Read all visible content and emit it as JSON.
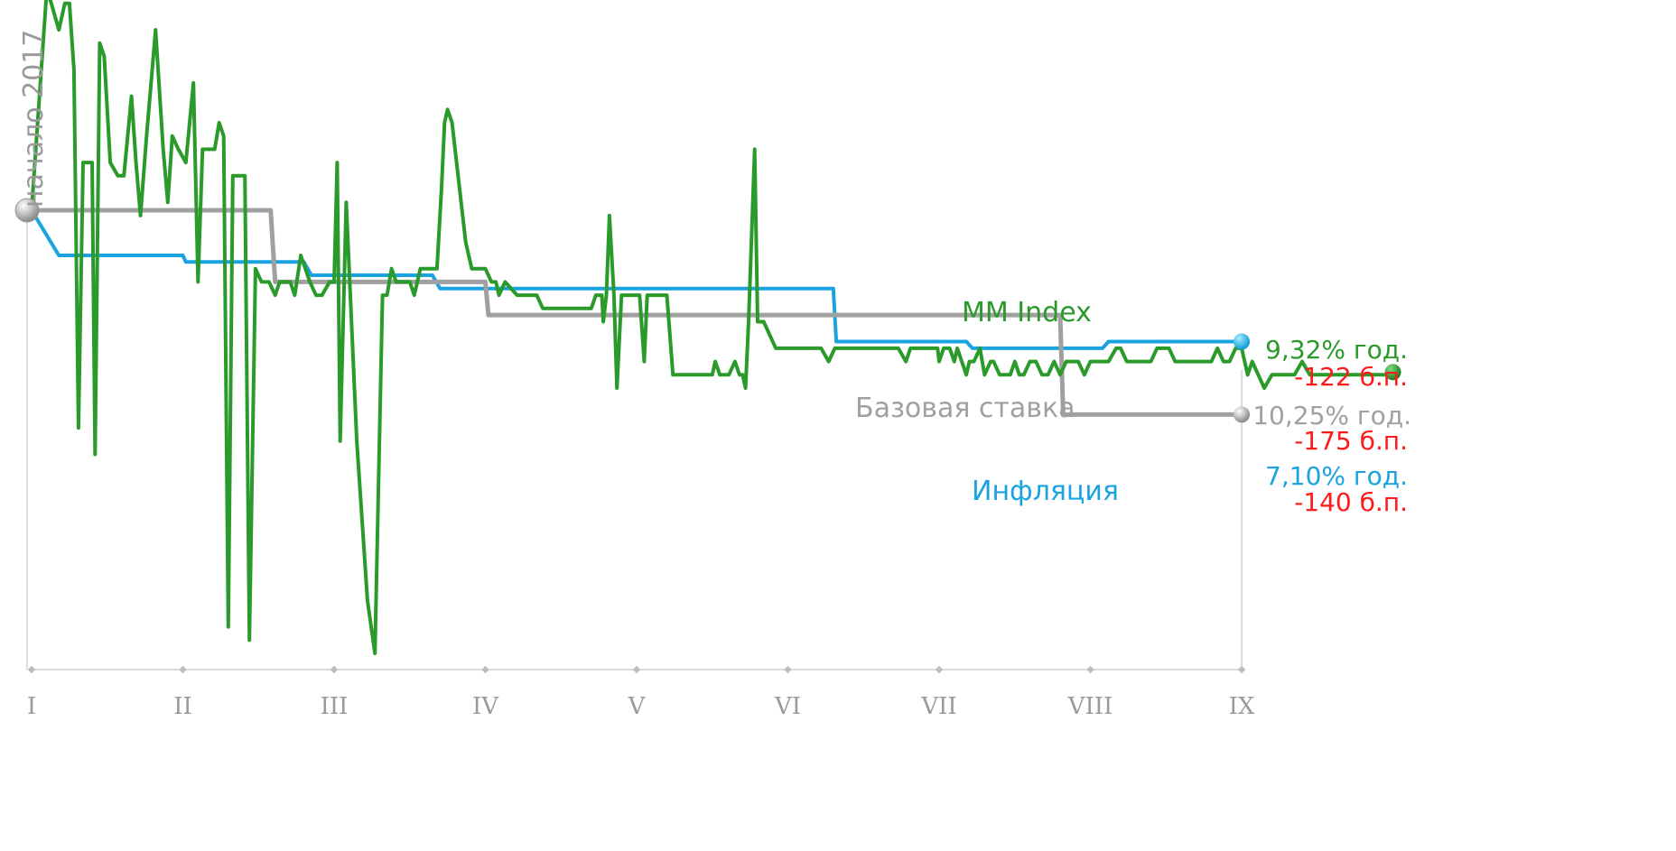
{
  "chart_data": {
    "type": "line",
    "xlabel": "",
    "ylabel": "",
    "start_label": "начало 2017",
    "x_ticks": [
      "I",
      "II",
      "III",
      "IV",
      "V",
      "VI",
      "VII",
      "VIII",
      "IX"
    ],
    "series": [
      {
        "name": "MM Index",
        "color": "#2a9a2a",
        "end_rate": "9,32% год.",
        "end_bp": "-122 б.п.",
        "points": [
          [
            0,
            10.54
          ],
          [
            0.1,
            12.2
          ],
          [
            0.13,
            12.1
          ],
          [
            0.18,
            11.9
          ],
          [
            0.22,
            12.1
          ],
          [
            0.25,
            12.1
          ],
          [
            0.28,
            11.6
          ],
          [
            0.31,
            8.9
          ],
          [
            0.34,
            10.9
          ],
          [
            0.38,
            10.9
          ],
          [
            0.4,
            10.9
          ],
          [
            0.42,
            8.7
          ],
          [
            0.45,
            11.8
          ],
          [
            0.48,
            11.7
          ],
          [
            0.52,
            10.9
          ],
          [
            0.57,
            10.8
          ],
          [
            0.61,
            10.8
          ],
          [
            0.66,
            11.4
          ],
          [
            0.69,
            10.9
          ],
          [
            0.72,
            10.5
          ],
          [
            0.76,
            11.1
          ],
          [
            0.82,
            11.9
          ],
          [
            0.87,
            11.0
          ],
          [
            0.9,
            10.6
          ],
          [
            0.93,
            11.1
          ],
          [
            0.97,
            11.0
          ],
          [
            1.02,
            10.9
          ],
          [
            1.07,
            11.5
          ],
          [
            1.1,
            10.0
          ],
          [
            1.13,
            11.0
          ],
          [
            1.17,
            11.0
          ],
          [
            1.21,
            11.0
          ],
          [
            1.24,
            11.2
          ],
          [
            1.27,
            11.1
          ],
          [
            1.3,
            7.4
          ],
          [
            1.33,
            10.8
          ],
          [
            1.36,
            10.8
          ],
          [
            1.41,
            10.8
          ],
          [
            1.44,
            7.3
          ],
          [
            1.48,
            10.1
          ],
          [
            1.52,
            10.0
          ],
          [
            1.57,
            10.0
          ],
          [
            1.61,
            9.9
          ],
          [
            1.64,
            10.0
          ],
          [
            1.68,
            10.0
          ],
          [
            1.71,
            10.0
          ],
          [
            1.74,
            9.9
          ],
          [
            1.78,
            10.2
          ],
          [
            1.84,
            10.0
          ],
          [
            1.88,
            9.9
          ],
          [
            1.92,
            9.9
          ],
          [
            1.97,
            10.0
          ],
          [
            2.0,
            10.0
          ],
          [
            2.02,
            10.9
          ],
          [
            2.04,
            8.8
          ],
          [
            2.08,
            10.6
          ],
          [
            2.15,
            8.8
          ],
          [
            2.22,
            7.6
          ],
          [
            2.27,
            7.2
          ],
          [
            2.32,
            9.9
          ],
          [
            2.35,
            9.9
          ],
          [
            2.38,
            10.1
          ],
          [
            2.41,
            10.0
          ],
          [
            2.45,
            10.0
          ],
          [
            2.5,
            10.0
          ],
          [
            2.53,
            9.9
          ],
          [
            2.57,
            10.1
          ],
          [
            2.63,
            10.1
          ],
          [
            2.68,
            10.1
          ],
          [
            2.71,
            10.7
          ],
          [
            2.73,
            11.2
          ],
          [
            2.75,
            11.3
          ],
          [
            2.78,
            11.2
          ],
          [
            2.87,
            10.3
          ],
          [
            2.91,
            10.1
          ],
          [
            2.94,
            10.1
          ],
          [
            3.0,
            10.1
          ],
          [
            3.04,
            10.0
          ],
          [
            3.07,
            10.0
          ],
          [
            3.09,
            9.9
          ],
          [
            3.13,
            10.0
          ],
          [
            3.21,
            9.9
          ],
          [
            3.26,
            9.9
          ],
          [
            3.3,
            9.9
          ],
          [
            3.34,
            9.9
          ],
          [
            3.38,
            9.8
          ],
          [
            3.41,
            9.8
          ],
          [
            3.47,
            9.8
          ],
          [
            3.5,
            9.8
          ],
          [
            3.55,
            9.8
          ],
          [
            3.59,
            9.8
          ],
          [
            3.62,
            9.8
          ],
          [
            3.65,
            9.8
          ],
          [
            3.7,
            9.8
          ],
          [
            3.73,
            9.9
          ],
          [
            3.77,
            9.9
          ],
          [
            3.78,
            9.7
          ],
          [
            3.8,
            9.9
          ],
          [
            3.82,
            10.5
          ],
          [
            3.85,
            9.9
          ],
          [
            3.87,
            9.2
          ],
          [
            3.9,
            9.9
          ],
          [
            3.92,
            9.9
          ],
          [
            3.96,
            9.9
          ],
          [
            4.02,
            9.9
          ],
          [
            4.05,
            9.4
          ],
          [
            4.07,
            9.9
          ],
          [
            4.1,
            9.9
          ],
          [
            4.16,
            9.9
          ],
          [
            4.2,
            9.9
          ],
          [
            4.24,
            9.3
          ],
          [
            4.26,
            9.3
          ],
          [
            4.3,
            9.3
          ],
          [
            4.33,
            9.3
          ],
          [
            4.37,
            9.3
          ],
          [
            4.4,
            9.3
          ],
          [
            4.45,
            9.3
          ],
          [
            4.5,
            9.3
          ],
          [
            4.52,
            9.4
          ],
          [
            4.55,
            9.3
          ],
          [
            4.58,
            9.3
          ],
          [
            4.61,
            9.3
          ],
          [
            4.65,
            9.4
          ],
          [
            4.68,
            9.3
          ],
          [
            4.7,
            9.3
          ],
          [
            4.72,
            9.2
          ],
          [
            4.74,
            9.7
          ],
          [
            4.78,
            11.0
          ],
          [
            4.8,
            9.7
          ],
          [
            4.84,
            9.7
          ],
          [
            4.88,
            9.6
          ],
          [
            4.92,
            9.5
          ],
          [
            4.97,
            9.5
          ],
          [
            5.0,
            9.5
          ],
          [
            5.06,
            9.5
          ],
          [
            5.1,
            9.5
          ],
          [
            5.17,
            9.5
          ],
          [
            5.22,
            9.5
          ],
          [
            5.27,
            9.4
          ],
          [
            5.31,
            9.5
          ],
          [
            5.36,
            9.5
          ],
          [
            5.42,
            9.5
          ],
          [
            5.48,
            9.5
          ],
          [
            5.53,
            9.5
          ],
          [
            5.57,
            9.5
          ],
          [
            5.61,
            9.5
          ],
          [
            5.65,
            9.5
          ],
          [
            5.7,
            9.5
          ],
          [
            5.73,
            9.5
          ],
          [
            5.78,
            9.4
          ],
          [
            5.81,
            9.5
          ],
          [
            5.84,
            9.5
          ],
          [
            5.88,
            9.5
          ],
          [
            5.92,
            9.5
          ],
          [
            5.95,
            9.5
          ],
          [
            5.99,
            9.5
          ],
          [
            6.0,
            9.4
          ],
          [
            6.03,
            9.5
          ],
          [
            6.07,
            9.5
          ],
          [
            6.1,
            9.4
          ],
          [
            6.12,
            9.5
          ],
          [
            6.15,
            9.4
          ],
          [
            6.18,
            9.3
          ],
          [
            6.2,
            9.4
          ],
          [
            6.23,
            9.4
          ],
          [
            6.27,
            9.5
          ],
          [
            6.3,
            9.3
          ],
          [
            6.34,
            9.4
          ],
          [
            6.36,
            9.4
          ],
          [
            6.4,
            9.3
          ],
          [
            6.43,
            9.3
          ],
          [
            6.47,
            9.3
          ],
          [
            6.5,
            9.4
          ],
          [
            6.53,
            9.3
          ],
          [
            6.56,
            9.3
          ],
          [
            6.6,
            9.4
          ],
          [
            6.64,
            9.4
          ],
          [
            6.68,
            9.3
          ],
          [
            6.72,
            9.3
          ],
          [
            6.76,
            9.4
          ],
          [
            6.8,
            9.3
          ],
          [
            6.84,
            9.4
          ],
          [
            6.88,
            9.4
          ],
          [
            6.92,
            9.4
          ],
          [
            6.96,
            9.3
          ],
          [
            7.0,
            9.4
          ],
          [
            7.04,
            9.4
          ],
          [
            7.08,
            9.4
          ],
          [
            7.12,
            9.4
          ],
          [
            7.17,
            9.5
          ],
          [
            7.2,
            9.5
          ],
          [
            7.24,
            9.4
          ],
          [
            7.28,
            9.4
          ],
          [
            7.32,
            9.4
          ],
          [
            7.36,
            9.4
          ],
          [
            7.4,
            9.4
          ],
          [
            7.44,
            9.5
          ],
          [
            7.48,
            9.5
          ],
          [
            7.52,
            9.5
          ],
          [
            7.56,
            9.4
          ],
          [
            7.6,
            9.4
          ],
          [
            7.64,
            9.4
          ],
          [
            7.68,
            9.4
          ],
          [
            7.72,
            9.4
          ],
          [
            7.76,
            9.4
          ],
          [
            7.8,
            9.4
          ],
          [
            7.84,
            9.5
          ],
          [
            7.88,
            9.4
          ],
          [
            7.92,
            9.4
          ],
          [
            7.96,
            9.5
          ],
          [
            8.0,
            9.5
          ],
          [
            8.04,
            9.3
          ],
          [
            8.07,
            9.4
          ],
          [
            8.11,
            9.3
          ],
          [
            8.15,
            9.2
          ],
          [
            8.2,
            9.3
          ],
          [
            8.25,
            9.3
          ],
          [
            8.3,
            9.3
          ],
          [
            8.35,
            9.3
          ],
          [
            8.4,
            9.4
          ],
          [
            8.45,
            9.3
          ],
          [
            8.5,
            9.3
          ],
          [
            8.55,
            9.3
          ],
          [
            8.6,
            9.3
          ],
          [
            8.65,
            9.3
          ],
          [
            8.7,
            9.3
          ],
          [
            8.75,
            9.3
          ],
          [
            8.8,
            9.3
          ],
          [
            8.85,
            9.3
          ],
          [
            8.9,
            9.3
          ],
          [
            8.95,
            9.3
          ],
          [
            9.0,
            9.32
          ]
        ]
      },
      {
        "name": "Базовая ставка",
        "color": "#a0a0a0",
        "end_rate": "10,25% год.",
        "end_bp": "-175 б.п.",
        "points": [
          [
            0,
            10.54
          ],
          [
            1.58,
            10.54
          ],
          [
            1.61,
            10.0
          ],
          [
            3.0,
            10.0
          ],
          [
            3.02,
            9.75
          ],
          [
            6.8,
            9.75
          ],
          [
            6.82,
            9.0
          ],
          [
            8.0,
            9.0
          ]
        ]
      },
      {
        "name": "Инфляция",
        "color": "#1aa3e0",
        "end_rate": "7,10% год.",
        "end_bp": "-140 б.п.",
        "points": [
          [
            0,
            10.54
          ],
          [
            0.18,
            10.2
          ],
          [
            1.0,
            10.2
          ],
          [
            1.02,
            10.15
          ],
          [
            1.8,
            10.15
          ],
          [
            1.85,
            10.05
          ],
          [
            2.65,
            10.05
          ],
          [
            2.7,
            9.95
          ],
          [
            5.3,
            9.95
          ],
          [
            5.32,
            9.55
          ],
          [
            6.18,
            9.55
          ],
          [
            6.22,
            9.5
          ],
          [
            7.08,
            9.5
          ],
          [
            7.12,
            9.55
          ],
          [
            8.0,
            9.55
          ]
        ]
      }
    ]
  }
}
